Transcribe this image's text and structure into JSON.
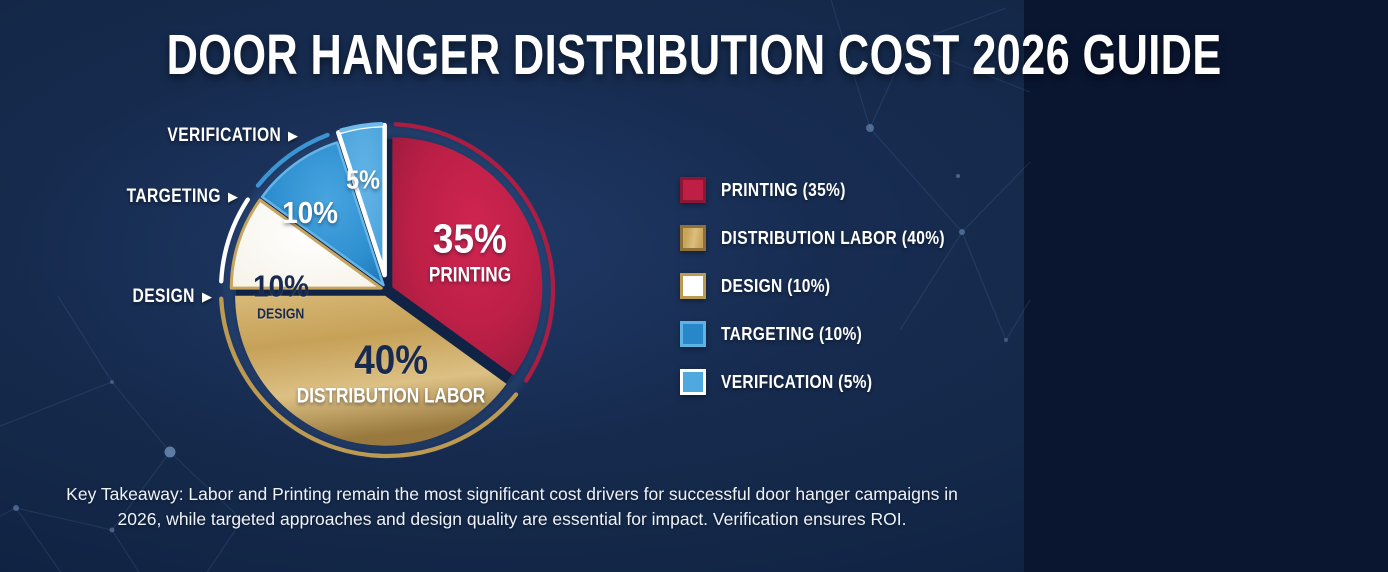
{
  "title": "DOOR HANGER DISTRIBUTION COST 2026 GUIDE",
  "icons": {
    "arrow_right": "▶"
  },
  "chart_data": {
    "type": "pie",
    "title": "Door Hanger Distribution Cost 2026 Guide",
    "direction": "clockwise",
    "start_angle_deg": 0,
    "legend_position": "right",
    "slices": [
      {
        "label": "PRINTING",
        "value": 35,
        "pct": "35%",
        "color": "#bc1f46",
        "grad": "radial",
        "stops": [
          [
            "0%",
            "#d02551"
          ],
          [
            "55%",
            "#bb1f46"
          ],
          [
            "100%",
            "#92193b"
          ]
        ],
        "stroke": "none",
        "stroke_width": 0,
        "arc_color": "#ab1d42",
        "offset": 6
      },
      {
        "label": "DISTRIBUTION LABOR",
        "value": 40,
        "pct": "40%",
        "color": "#c9a55c",
        "grad": "linear",
        "stops": [
          [
            "0%",
            "#d8b977"
          ],
          [
            "35%",
            "#c6a158"
          ],
          [
            "68%",
            "#dcc084"
          ],
          [
            "100%",
            "#99793d"
          ]
        ],
        "stroke": "none",
        "stroke_width": 0,
        "arc_color": "#bd9a52",
        "offset": 6
      },
      {
        "label": "DESIGN",
        "value": 10,
        "pct": "10%",
        "color": "#ffffff",
        "grad": "radial",
        "stops": [
          [
            "0%",
            "#ffffff"
          ],
          [
            "100%",
            "#f6f2e7"
          ]
        ],
        "stroke": "#c8a55e",
        "stroke_width": 3,
        "arc_color": "#ffffff",
        "offset": 6
      },
      {
        "label": "TARGETING",
        "value": 10,
        "pct": "10%",
        "color": "#2e8fd0",
        "grad": "radial",
        "stops": [
          [
            "0%",
            "#47a4df"
          ],
          [
            "60%",
            "#2e8fd0"
          ],
          [
            "100%",
            "#1c6dae"
          ]
        ],
        "stroke": "#66b5e6",
        "stroke_width": 2.5,
        "arc_color": "#3b95d2",
        "offset": 6
      },
      {
        "label": "VERIFICATION",
        "value": 5,
        "pct": "5%",
        "color": "#55ace1",
        "grad": "radial",
        "stops": [
          [
            "0%",
            "#63b4e6"
          ],
          [
            "100%",
            "#449ed8"
          ]
        ],
        "stroke": "#ffffff",
        "stroke_width": 4.5,
        "arc_color": "#6fbae8",
        "offset": 15
      }
    ]
  },
  "pointers": [
    {
      "label": "VERIFICATION"
    },
    {
      "label": "TARGETING"
    },
    {
      "label": "DESIGN"
    }
  ],
  "legend": [
    {
      "label": "PRINTING (35%)",
      "swatch_fill": "#c01f45",
      "swatch_border": "#8c1634"
    },
    {
      "label": "DISTRIBUTION LABOR (40%)",
      "swatch_fill": "#c9a45b",
      "swatch_fill2": "#dcbe7e",
      "swatch_border": "#8f7038"
    },
    {
      "label": "DESIGN (10%)",
      "swatch_fill": "#ffffff",
      "swatch_border": "#bd9a52"
    },
    {
      "label": "TARGETING (10%)",
      "swatch_fill": "#2787c9",
      "swatch_border": "#5fb2e4"
    },
    {
      "label": "VERIFICATION (5%)",
      "swatch_fill": "#4fa9df",
      "swatch_border": "#ffffff"
    }
  ],
  "takeaway": {
    "line1": "Key Takeaway: Labor and Printing remain the most significant cost drivers for successful door hanger campaigns in",
    "line2": "2026, while targeted approaches and design quality are essential for impact. Verification ensures ROI."
  }
}
